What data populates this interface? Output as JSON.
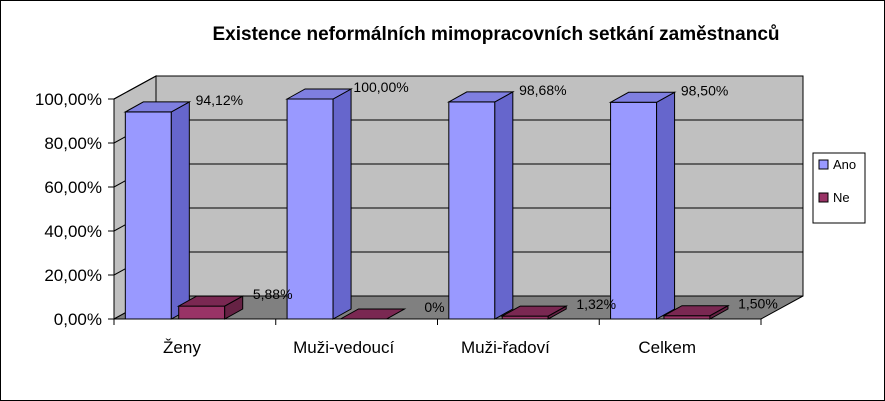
{
  "chart_data": {
    "type": "bar",
    "title": "Existence neformálních mimopracovních setkání zaměstnanců",
    "categories": [
      "Ženy",
      "Muži-vedoucí",
      "Muži-řadoví",
      "Celkem"
    ],
    "series": [
      {
        "name": "Ano",
        "values": [
          94.12,
          100.0,
          98.68,
          98.5
        ],
        "labels": [
          "94,12%",
          "100,00%",
          "98,68%",
          "98,50%"
        ],
        "color": "#9999FF",
        "side_color": "#6666CC",
        "top_color": "#7F7FE0"
      },
      {
        "name": "Ne",
        "values": [
          5.88,
          0,
          1.32,
          1.5
        ],
        "labels": [
          "5,88%",
          "0%",
          "1,32%",
          "1,50%"
        ],
        "color": "#993366",
        "side_color": "#662244",
        "top_color": "#7A2852"
      }
    ],
    "y_ticks": [
      "0,00%",
      "20,00%",
      "40,00%",
      "60,00%",
      "80,00%",
      "100,00%"
    ],
    "ylim": [
      0,
      100
    ],
    "grid": true,
    "wall_color": "#C0C0C0",
    "floor_color": "#808080",
    "legend_position": "right",
    "projection": "3d-perspective"
  }
}
